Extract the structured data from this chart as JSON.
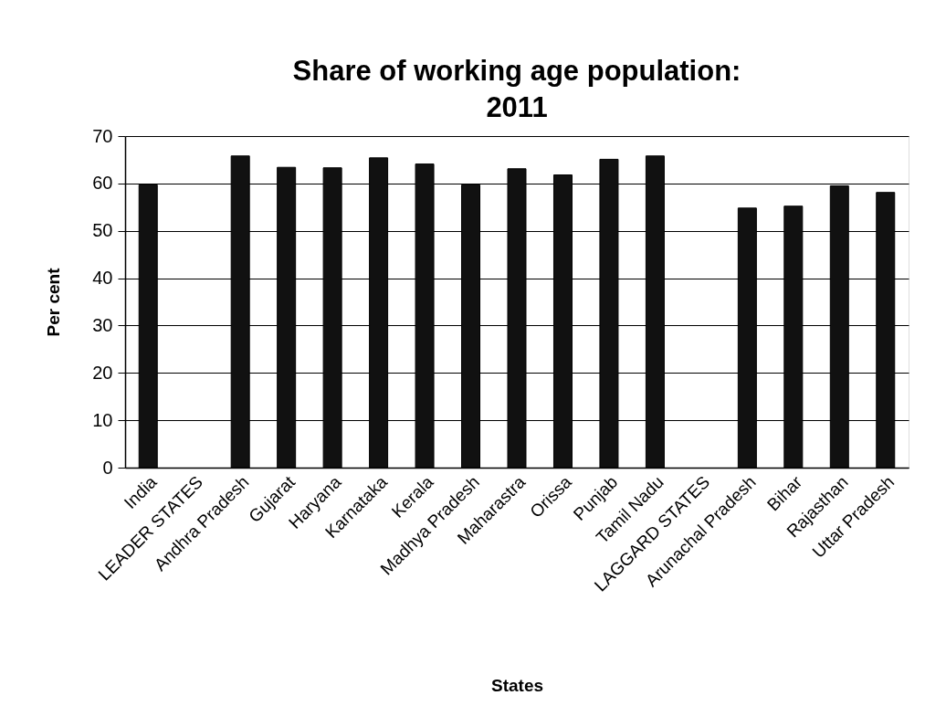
{
  "chart_data": {
    "type": "bar",
    "title": "Share of working age population: 2011",
    "xlabel": "States",
    "ylabel": "Per cent",
    "categories": [
      "India",
      "LEADER STATES",
      "Andhra Pradesh",
      "Gujarat",
      "Haryana",
      "Karnataka",
      "Kerala",
      "Madhya Pradesh",
      "Maharastra",
      "Orissa",
      "Punjab",
      "Tamil Nadu",
      "LAGGARD STATES",
      "Arunachal Pradesh",
      "Bihar",
      "Rajasthan",
      "Uttar Pradesh"
    ],
    "values": [
      59.7,
      null,
      65.8,
      63.4,
      63.3,
      65.4,
      64.1,
      59.7,
      63.1,
      61.8,
      65.1,
      65.8,
      null,
      54.8,
      55.2,
      59.5,
      58.1
    ],
    "color": "#111111",
    "ylim": [
      0,
      70
    ],
    "yticks": [
      0,
      10,
      20,
      30,
      40,
      50,
      60,
      70
    ],
    "grid": "y"
  }
}
